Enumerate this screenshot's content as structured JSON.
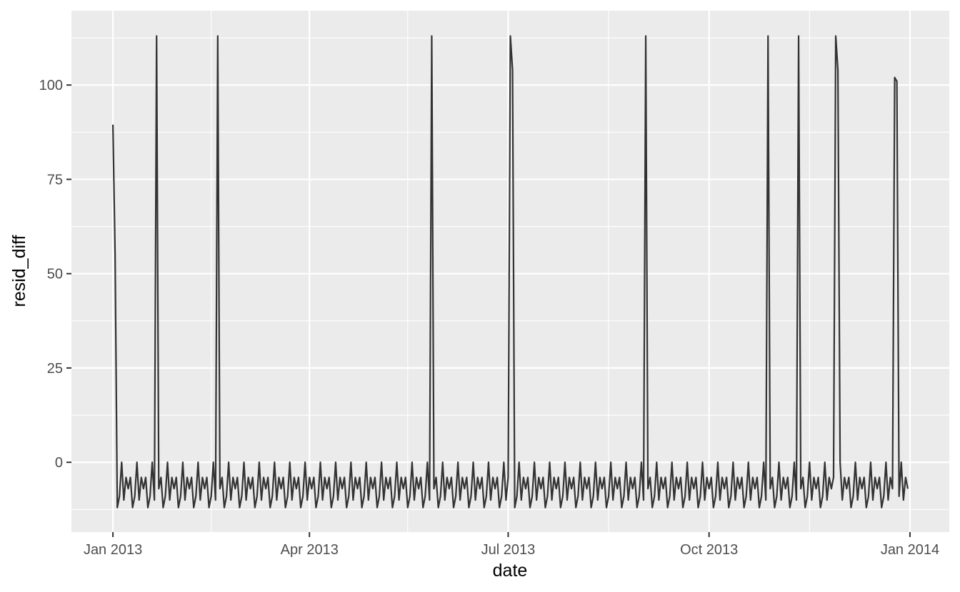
{
  "chart_data": {
    "type": "line",
    "xlabel": "date",
    "ylabel": "resid_diff",
    "xlim": [
      "2012-12-13",
      "2014-01-19"
    ],
    "ylim": [
      -18.5,
      119.7
    ],
    "x_ticks": [
      {
        "value": "2013-01-01",
        "label": "Jan 2013"
      },
      {
        "value": "2013-04-01",
        "label": "Apr 2013"
      },
      {
        "value": "2013-07-01",
        "label": "Jul 2013"
      },
      {
        "value": "2013-10-01",
        "label": "Oct 2013"
      },
      {
        "value": "2014-01-01",
        "label": "Jan 2014"
      }
    ],
    "x_minor_ticks": [
      "2013-02-15",
      "2013-05-16",
      "2013-08-16",
      "2013-11-16"
    ],
    "y_ticks": [
      0,
      25,
      50,
      75,
      100
    ],
    "y_minor_ticks": [
      -12.5,
      12.5,
      37.5,
      62.5,
      87.5,
      112.5
    ],
    "grid": true,
    "series": [
      {
        "start_date": "2013-01-01",
        "end_date": "2013-12-31",
        "weekly_pattern": [
          -12,
          -9,
          0,
          -10,
          -4,
          -7,
          -4
        ],
        "first_values": [
          89.5,
          55
        ],
        "spikes": [
          {
            "date": "2013-01-21",
            "value": 113
          },
          {
            "date": "2013-02-18",
            "value": 113
          },
          {
            "date": "2013-05-27",
            "value": 113
          },
          {
            "date": "2013-07-02",
            "value": 113
          },
          {
            "date": "2013-07-03",
            "value": 104
          },
          {
            "date": "2013-09-02",
            "value": 113
          },
          {
            "date": "2013-10-28",
            "value": 113
          },
          {
            "date": "2013-11-11",
            "value": 113
          },
          {
            "date": "2013-11-28",
            "value": 113
          },
          {
            "date": "2013-11-29",
            "value": 104
          },
          {
            "date": "2013-12-25",
            "value": 102
          },
          {
            "date": "2013-12-26",
            "value": 101
          }
        ]
      }
    ],
    "colors": {
      "panel": "#ebebeb",
      "grid_major": "#ffffff",
      "line": "#333333",
      "tick": "#333333"
    }
  }
}
